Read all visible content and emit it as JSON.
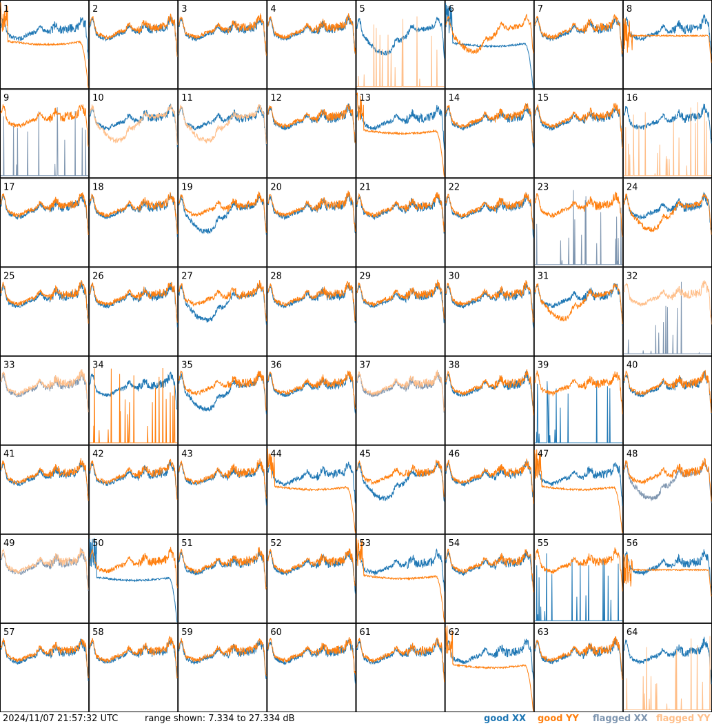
{
  "footer": {
    "timestamp": "2024/11/07 21:57:32 UTC",
    "range_text": "range shown: 7.334 to 27.334 dB"
  },
  "legend": [
    {
      "label": "good XX",
      "color": "#1f77b4"
    },
    {
      "label": "good YY",
      "color": "#ff7f0e"
    },
    {
      "label": "flagged XX",
      "color": "#7f96b0"
    },
    {
      "label": "flagged YY",
      "color": "#ffbf8a"
    }
  ],
  "chart_data": {
    "type": "line",
    "ylim": [
      7.334,
      27.334
    ],
    "grid_rows": 8,
    "grid_cols": 8,
    "series_names": [
      "good XX",
      "good YY",
      "flagged XX",
      "flagged YY"
    ],
    "panels": [
      {
        "label": "1",
        "xx": "good",
        "yy": "good",
        "xx_shape": "normal",
        "yy_shape": "rolloff"
      },
      {
        "label": "2",
        "xx": "good",
        "yy": "good",
        "xx_shape": "normal",
        "yy_shape": "normal"
      },
      {
        "label": "3",
        "xx": "good",
        "yy": "good",
        "xx_shape": "normal",
        "yy_shape": "normal"
      },
      {
        "label": "4",
        "xx": "good",
        "yy": "good",
        "xx_shape": "normal",
        "yy_shape": "normal"
      },
      {
        "label": "5",
        "xx": "good",
        "yy": "flagged",
        "xx_shape": "dip",
        "yy_shape": "spiky"
      },
      {
        "label": "6",
        "xx": "good",
        "yy": "good",
        "xx_shape": "rolloff",
        "yy_shape": "dip"
      },
      {
        "label": "7",
        "xx": "good",
        "yy": "good",
        "xx_shape": "normal",
        "yy_shape": "normal"
      },
      {
        "label": "8",
        "xx": "good",
        "yy": "good",
        "xx_shape": "normal",
        "yy_shape": "flat"
      },
      {
        "label": "9",
        "xx": "flagged",
        "yy": "good",
        "xx_shape": "spiky",
        "yy_shape": "normal"
      },
      {
        "label": "10",
        "xx": "good",
        "yy": "flagged",
        "xx_shape": "normal",
        "yy_shape": "dip"
      },
      {
        "label": "11",
        "xx": "good",
        "yy": "flagged",
        "xx_shape": "normal",
        "yy_shape": "dip"
      },
      {
        "label": "12",
        "xx": "good",
        "yy": "good",
        "xx_shape": "normal",
        "yy_shape": "normal"
      },
      {
        "label": "13",
        "xx": "good",
        "yy": "good",
        "xx_shape": "normal",
        "yy_shape": "rolloff"
      },
      {
        "label": "14",
        "xx": "good",
        "yy": "good",
        "xx_shape": "normal",
        "yy_shape": "normal"
      },
      {
        "label": "15",
        "xx": "good",
        "yy": "good",
        "xx_shape": "normal",
        "yy_shape": "normal"
      },
      {
        "label": "16",
        "xx": "good",
        "yy": "flagged",
        "xx_shape": "normal",
        "yy_shape": "spiky"
      },
      {
        "label": "17",
        "xx": "good",
        "yy": "good",
        "xx_shape": "normal",
        "yy_shape": "normal"
      },
      {
        "label": "18",
        "xx": "good",
        "yy": "good",
        "xx_shape": "normal",
        "yy_shape": "normal"
      },
      {
        "label": "19",
        "xx": "good",
        "yy": "good",
        "xx_shape": "dip",
        "yy_shape": "normal"
      },
      {
        "label": "20",
        "xx": "good",
        "yy": "good",
        "xx_shape": "normal",
        "yy_shape": "normal"
      },
      {
        "label": "21",
        "xx": "good",
        "yy": "good",
        "xx_shape": "normal",
        "yy_shape": "normal"
      },
      {
        "label": "22",
        "xx": "good",
        "yy": "good",
        "xx_shape": "normal",
        "yy_shape": "normal"
      },
      {
        "label": "23",
        "xx": "flagged",
        "yy": "good",
        "xx_shape": "spiky",
        "yy_shape": "normal"
      },
      {
        "label": "24",
        "xx": "good",
        "yy": "good",
        "xx_shape": "normal",
        "yy_shape": "dip"
      },
      {
        "label": "25",
        "xx": "good",
        "yy": "good",
        "xx_shape": "normal",
        "yy_shape": "normal"
      },
      {
        "label": "26",
        "xx": "good",
        "yy": "good",
        "xx_shape": "normal",
        "yy_shape": "normal"
      },
      {
        "label": "27",
        "xx": "good",
        "yy": "good",
        "xx_shape": "dip",
        "yy_shape": "normal"
      },
      {
        "label": "28",
        "xx": "good",
        "yy": "good",
        "xx_shape": "normal",
        "yy_shape": "normal"
      },
      {
        "label": "29",
        "xx": "good",
        "yy": "good",
        "xx_shape": "normal",
        "yy_shape": "normal"
      },
      {
        "label": "30",
        "xx": "good",
        "yy": "good",
        "xx_shape": "normal",
        "yy_shape": "normal"
      },
      {
        "label": "31",
        "xx": "good",
        "yy": "good",
        "xx_shape": "normal",
        "yy_shape": "dip"
      },
      {
        "label": "32",
        "xx": "flagged",
        "yy": "flagged",
        "xx_shape": "spiky",
        "yy_shape": "normal"
      },
      {
        "label": "33",
        "xx": "flagged",
        "yy": "flagged",
        "xx_shape": "normal",
        "yy_shape": "normal"
      },
      {
        "label": "34",
        "xx": "good",
        "yy": "good",
        "xx_shape": "normal",
        "yy_shape": "spiky"
      },
      {
        "label": "35",
        "xx": "good",
        "yy": "good",
        "xx_shape": "dip",
        "yy_shape": "normal"
      },
      {
        "label": "36",
        "xx": "good",
        "yy": "good",
        "xx_shape": "normal",
        "yy_shape": "normal"
      },
      {
        "label": "37",
        "xx": "flagged",
        "yy": "flagged",
        "xx_shape": "normal",
        "yy_shape": "normal"
      },
      {
        "label": "38",
        "xx": "good",
        "yy": "good",
        "xx_shape": "normal",
        "yy_shape": "normal"
      },
      {
        "label": "39",
        "xx": "good",
        "yy": "good",
        "xx_shape": "spiky",
        "yy_shape": "normal"
      },
      {
        "label": "40",
        "xx": "good",
        "yy": "good",
        "xx_shape": "normal",
        "yy_shape": "normal"
      },
      {
        "label": "41",
        "xx": "good",
        "yy": "good",
        "xx_shape": "normal",
        "yy_shape": "normal"
      },
      {
        "label": "42",
        "xx": "good",
        "yy": "good",
        "xx_shape": "normal",
        "yy_shape": "normal"
      },
      {
        "label": "43",
        "xx": "good",
        "yy": "good",
        "xx_shape": "normal",
        "yy_shape": "normal"
      },
      {
        "label": "44",
        "xx": "good",
        "yy": "good",
        "xx_shape": "normal",
        "yy_shape": "rolloff"
      },
      {
        "label": "45",
        "xx": "good",
        "yy": "good",
        "xx_shape": "dip",
        "yy_shape": "normal"
      },
      {
        "label": "46",
        "xx": "good",
        "yy": "good",
        "xx_shape": "normal",
        "yy_shape": "normal"
      },
      {
        "label": "47",
        "xx": "good",
        "yy": "good",
        "xx_shape": "normal",
        "yy_shape": "rolloff"
      },
      {
        "label": "48",
        "xx": "flagged",
        "yy": "good",
        "xx_shape": "dip",
        "yy_shape": "normal"
      },
      {
        "label": "49",
        "xx": "flagged",
        "yy": "flagged",
        "xx_shape": "normal",
        "yy_shape": "normal"
      },
      {
        "label": "50",
        "xx": "good",
        "yy": "good",
        "xx_shape": "rolloff",
        "yy_shape": "normal"
      },
      {
        "label": "51",
        "xx": "good",
        "yy": "good",
        "xx_shape": "normal",
        "yy_shape": "normal"
      },
      {
        "label": "52",
        "xx": "good",
        "yy": "good",
        "xx_shape": "normal",
        "yy_shape": "normal"
      },
      {
        "label": "53",
        "xx": "good",
        "yy": "good",
        "xx_shape": "normal",
        "yy_shape": "rolloff"
      },
      {
        "label": "54",
        "xx": "good",
        "yy": "good",
        "xx_shape": "normal",
        "yy_shape": "normal"
      },
      {
        "label": "55",
        "xx": "good",
        "yy": "good",
        "xx_shape": "spiky",
        "yy_shape": "normal"
      },
      {
        "label": "56",
        "xx": "good",
        "yy": "good",
        "xx_shape": "normal",
        "yy_shape": "flat"
      },
      {
        "label": "57",
        "xx": "good",
        "yy": "good",
        "xx_shape": "normal",
        "yy_shape": "normal"
      },
      {
        "label": "58",
        "xx": "good",
        "yy": "good",
        "xx_shape": "normal",
        "yy_shape": "normal"
      },
      {
        "label": "59",
        "xx": "good",
        "yy": "good",
        "xx_shape": "normal",
        "yy_shape": "normal"
      },
      {
        "label": "60",
        "xx": "good",
        "yy": "good",
        "xx_shape": "normal",
        "yy_shape": "normal"
      },
      {
        "label": "61",
        "xx": "good",
        "yy": "good",
        "xx_shape": "normal",
        "yy_shape": "normal"
      },
      {
        "label": "62",
        "xx": "good",
        "yy": "good",
        "xx_shape": "normal",
        "yy_shape": "rolloff"
      },
      {
        "label": "63",
        "xx": "good",
        "yy": "good",
        "xx_shape": "normal",
        "yy_shape": "normal"
      },
      {
        "label": "64",
        "xx": "good",
        "yy": "flagged",
        "xx_shape": "normal",
        "yy_shape": "spiky"
      }
    ]
  }
}
